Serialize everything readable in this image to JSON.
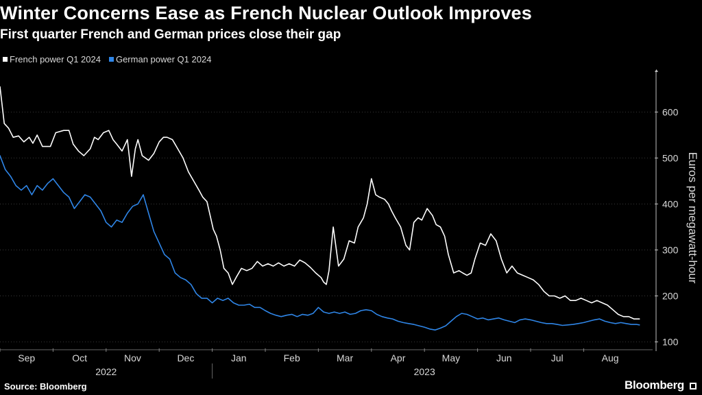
{
  "title": "Winter Concerns Ease as French Nuclear Outlook Improves",
  "subtitle": "First quarter French and German prices close their gap",
  "source": "Source: Bloomberg",
  "brand": "Bloomberg",
  "colors": {
    "background": "#000000",
    "french": "#ffffff",
    "german": "#2f86e8",
    "grid": "#3a3a3a"
  },
  "chart_data": {
    "type": "line",
    "title": "Winter Concerns Ease as French Nuclear Outlook Improves",
    "subtitle": "First quarter French and German prices close their gap",
    "ylabel": "Euros per megawatt-hour",
    "xlabel": "",
    "ylim": [
      80,
      690
    ],
    "yticks": [
      100,
      200,
      300,
      400,
      500,
      600
    ],
    "xlim": [
      0,
      12.3
    ],
    "x_months": [
      "Sep",
      "Oct",
      "Nov",
      "Dec",
      "Jan",
      "Feb",
      "Mar",
      "Apr",
      "May",
      "Jun",
      "Jul",
      "Aug"
    ],
    "x_years": [
      {
        "label": "2022",
        "center": 2.0
      },
      {
        "label": "2023",
        "center": 8.0
      }
    ],
    "x_unit": "months since start of Sep 2022",
    "legend_position": "top-left",
    "grid": "horizontal dotted",
    "series": [
      {
        "name": "French power Q1 2024",
        "color": "#ffffff",
        "x": [
          0.0,
          0.08,
          0.16,
          0.25,
          0.35,
          0.45,
          0.55,
          0.62,
          0.7,
          0.8,
          0.95,
          1.05,
          1.2,
          1.3,
          1.38,
          1.48,
          1.58,
          1.7,
          1.78,
          1.85,
          1.95,
          2.05,
          2.13,
          2.2,
          2.3,
          2.4,
          2.48,
          2.55,
          2.6,
          2.68,
          2.8,
          2.9,
          3.0,
          3.08,
          3.15,
          3.25,
          3.35,
          3.45,
          3.55,
          3.65,
          3.75,
          3.82,
          3.9,
          3.97,
          4.02,
          4.08,
          4.15,
          4.22,
          4.3,
          4.38,
          4.45,
          4.55,
          4.65,
          4.75,
          4.85,
          4.95,
          5.05,
          5.15,
          5.25,
          5.35,
          5.45,
          5.55,
          5.65,
          5.75,
          5.85,
          5.95,
          6.05,
          6.1,
          6.15,
          6.2,
          6.28,
          6.38,
          6.48,
          6.58,
          6.68,
          6.75,
          6.8,
          6.85,
          6.92,
          7.0,
          7.08,
          7.15,
          7.25,
          7.32,
          7.38,
          7.45,
          7.55,
          7.65,
          7.72,
          7.8,
          7.88,
          7.95,
          8.05,
          8.15,
          8.22,
          8.3,
          8.38,
          8.45,
          8.55,
          8.65,
          8.72,
          8.8,
          8.88,
          8.95,
          9.05,
          9.15,
          9.25,
          9.35,
          9.45,
          9.55,
          9.65,
          9.75,
          9.85,
          9.95,
          10.05,
          10.15,
          10.25,
          10.35,
          10.45,
          10.55,
          10.65,
          10.75,
          10.85,
          10.95,
          11.05,
          11.15,
          11.25,
          11.35,
          11.45,
          11.55,
          11.65,
          11.75,
          11.85,
          11.95,
          12.05
        ],
        "values": [
          655,
          575,
          565,
          545,
          548,
          535,
          545,
          532,
          550,
          525,
          525,
          555,
          560,
          560,
          530,
          515,
          505,
          520,
          545,
          540,
          555,
          560,
          540,
          530,
          515,
          540,
          460,
          520,
          540,
          505,
          495,
          510,
          535,
          545,
          545,
          540,
          520,
          500,
          470,
          450,
          430,
          415,
          405,
          370,
          345,
          330,
          300,
          260,
          250,
          225,
          240,
          260,
          255,
          260,
          275,
          265,
          270,
          265,
          272,
          265,
          270,
          265,
          278,
          272,
          262,
          250,
          240,
          230,
          225,
          255,
          350,
          265,
          280,
          320,
          315,
          350,
          360,
          370,
          400,
          455,
          420,
          415,
          410,
          400,
          385,
          370,
          350,
          310,
          300,
          360,
          370,
          365,
          390,
          375,
          355,
          350,
          330,
          290,
          250,
          255,
          250,
          245,
          250,
          280,
          315,
          310,
          335,
          320,
          280,
          250,
          265,
          250,
          245,
          240,
          235,
          225,
          210,
          200,
          200,
          195,
          200,
          190,
          190,
          195,
          190,
          185,
          190,
          185,
          180,
          170,
          160,
          155,
          155,
          150,
          150
        ],
        "visible_x": 123
      },
      {
        "name": "German power Q1 2024",
        "color": "#2f86e8",
        "x": [
          0.0,
          0.1,
          0.2,
          0.3,
          0.4,
          0.5,
          0.6,
          0.7,
          0.8,
          0.9,
          1.0,
          1.1,
          1.2,
          1.3,
          1.4,
          1.5,
          1.6,
          1.7,
          1.8,
          1.9,
          2.0,
          2.1,
          2.2,
          2.3,
          2.4,
          2.5,
          2.6,
          2.7,
          2.8,
          2.9,
          3.0,
          3.1,
          3.2,
          3.3,
          3.4,
          3.5,
          3.6,
          3.7,
          3.8,
          3.9,
          4.0,
          4.1,
          4.2,
          4.3,
          4.4,
          4.5,
          4.6,
          4.7,
          4.8,
          4.9,
          5.0,
          5.1,
          5.2,
          5.3,
          5.4,
          5.5,
          5.6,
          5.7,
          5.8,
          5.9,
          6.0,
          6.1,
          6.2,
          6.3,
          6.4,
          6.5,
          6.6,
          6.7,
          6.8,
          6.9,
          7.0,
          7.1,
          7.2,
          7.3,
          7.4,
          7.5,
          7.6,
          7.7,
          7.8,
          7.9,
          8.0,
          8.1,
          8.2,
          8.3,
          8.4,
          8.5,
          8.6,
          8.7,
          8.8,
          8.9,
          9.0,
          9.1,
          9.2,
          9.3,
          9.4,
          9.5,
          9.6,
          9.7,
          9.8,
          9.9,
          10.0,
          10.1,
          10.2,
          10.3,
          10.4,
          10.5,
          10.6,
          10.7,
          10.8,
          10.9,
          11.0,
          11.1,
          11.2,
          11.3,
          11.4,
          11.5,
          11.6,
          11.7,
          11.8,
          11.9,
          12.0,
          12.05
        ],
        "values": [
          505,
          475,
          460,
          440,
          430,
          440,
          420,
          440,
          430,
          445,
          455,
          440,
          425,
          415,
          390,
          405,
          420,
          415,
          400,
          385,
          360,
          350,
          365,
          360,
          380,
          395,
          400,
          420,
          380,
          340,
          315,
          290,
          280,
          250,
          240,
          235,
          225,
          205,
          195,
          195,
          185,
          195,
          190,
          195,
          185,
          180,
          180,
          182,
          175,
          175,
          168,
          162,
          158,
          155,
          158,
          160,
          155,
          160,
          158,
          162,
          175,
          165,
          162,
          165,
          162,
          165,
          160,
          162,
          168,
          170,
          168,
          160,
          155,
          152,
          150,
          145,
          142,
          140,
          138,
          135,
          132,
          128,
          126,
          130,
          135,
          145,
          155,
          162,
          160,
          155,
          150,
          152,
          148,
          150,
          152,
          148,
          145,
          142,
          148,
          150,
          148,
          145,
          142,
          140,
          140,
          138,
          136,
          137,
          138,
          140,
          142,
          145,
          148,
          150,
          145,
          142,
          140,
          142,
          140,
          138,
          138,
          137
        ]
      }
    ]
  }
}
